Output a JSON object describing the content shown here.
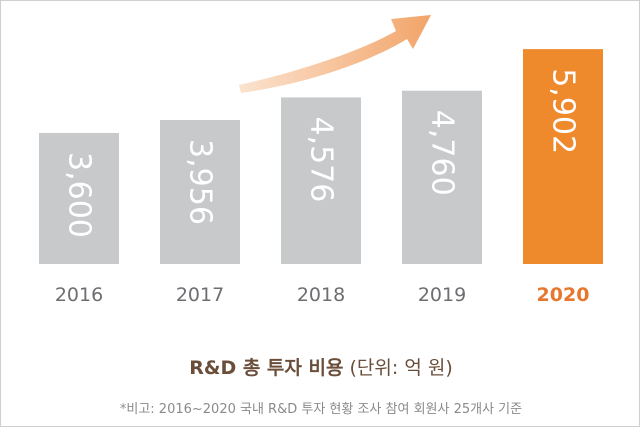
{
  "chart_data": {
    "type": "bar",
    "categories": [
      "2016",
      "2017",
      "2018",
      "2019",
      "2020"
    ],
    "values": [
      3600,
      3956,
      4576,
      4760,
      5902
    ],
    "value_labels": [
      "3,600",
      "3,956",
      "4,576",
      "4,760",
      "5,902"
    ],
    "highlight_category": "2020",
    "title": "R&D 총 투자 비용",
    "unit_label": "(단위: 억 원)",
    "note": "*비고: 2016~2020 국내 R&D 투자 현황 조사 참여 회원사 25개사 기준",
    "xlabel": "",
    "ylabel": "",
    "ylim": [
      0,
      6400
    ],
    "grid": false,
    "legend": "none",
    "trend_arrow": true
  },
  "colors": {
    "bar": "#c8c9cb",
    "highlight_bar": "#ef8a2c",
    "highlight_text": "#e8772e",
    "tick_text": "#6d6e71",
    "title_text": "#6b4e3a",
    "note_text": "#8a8a8a",
    "arrow_start": "#fbe3cf",
    "arrow_end": "#f2a469"
  }
}
